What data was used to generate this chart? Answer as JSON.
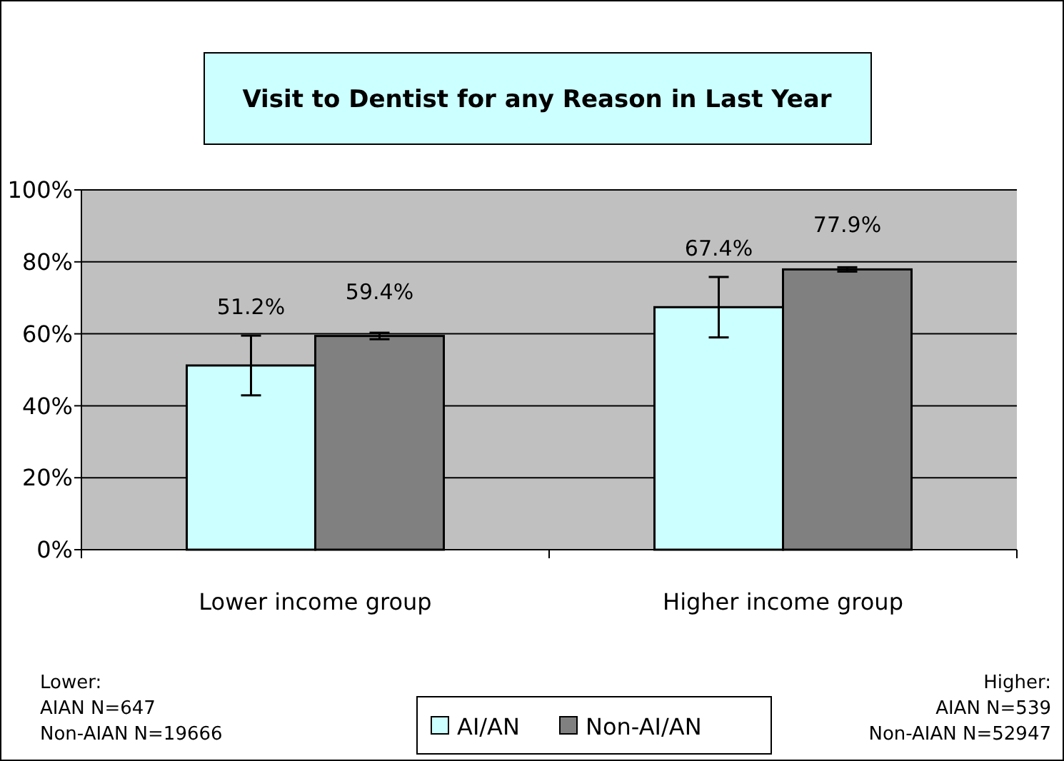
{
  "chart_data": {
    "type": "bar",
    "title": "Visit to Dentist for any Reason in Last Year",
    "categories": [
      "Lower income group",
      "Higher income group"
    ],
    "series": [
      {
        "name": "AI/AN",
        "color": "#ccffff",
        "values": [
          51.2,
          67.4
        ],
        "errors": [
          8.3,
          8.4
        ],
        "value_labels": [
          "51.2%",
          "67.4%"
        ]
      },
      {
        "name": "Non-AI/AN",
        "color": "#808080",
        "values": [
          59.4,
          77.9
        ],
        "errors": [
          0.9,
          0.6
        ],
        "value_labels": [
          "59.4%",
          "77.9%"
        ]
      }
    ],
    "ylim": [
      0,
      100
    ],
    "yticks": [
      {
        "value": 0,
        "label": "0%"
      },
      {
        "value": 20,
        "label": "20%"
      },
      {
        "value": 40,
        "label": "40%"
      },
      {
        "value": 60,
        "label": "60%"
      },
      {
        "value": 80,
        "label": "80%"
      },
      {
        "value": 100,
        "label": "100%"
      }
    ],
    "grid": "y",
    "legend": "bottom",
    "annotations": [
      "Lower:\nAIAN N=647\nNon-AIAN N=19666",
      "Higher:\nAIAN N=539\nNon-AIAN N=52947"
    ]
  }
}
